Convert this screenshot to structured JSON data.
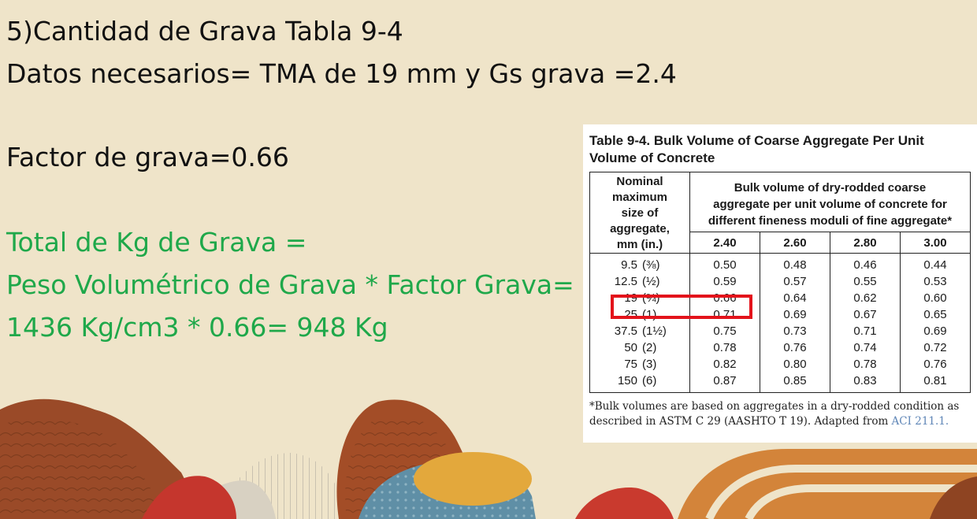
{
  "slide": {
    "heading": "5)Cantidad de Grava Tabla 9-4",
    "datos": "Datos necesarios= TMA de 19 mm y Gs grava =2.4",
    "factor": "Factor de grava=0.66",
    "total_label": "Total de Kg de Grava =",
    "formula": "Peso Volumétrico de Grava * Factor Grava=",
    "result": "1436 Kg/cm3 * 0.66= 948 Kg"
  },
  "colors": {
    "background": "#efe4c9",
    "green_text": "#1fa84a",
    "highlight": "#e3131b"
  },
  "table": {
    "title_line1": "Table 9-4. Bulk Volume of Coarse Aggregate Per Unit",
    "title_line2": "Volume of Concrete",
    "size_header": [
      "Nominal",
      "maximum",
      "size of",
      "aggregate,",
      "mm  (in.)"
    ],
    "bulk_header": [
      "Bulk volume of dry-rodded coarse",
      "aggregate per unit volume of concrete for",
      "different fineness moduli of fine aggregate*"
    ],
    "fm_columns": [
      "2.40",
      "2.60",
      "2.80",
      "3.00"
    ],
    "rows": [
      {
        "mm": "9.5",
        "in": "(⅜)",
        "values": [
          "0.50",
          "0.48",
          "0.46",
          "0.44"
        ]
      },
      {
        "mm": "12.5",
        "in": "(½)",
        "values": [
          "0.59",
          "0.57",
          "0.55",
          "0.53"
        ]
      },
      {
        "mm": "19",
        "in": "(¾)",
        "values": [
          "0.66",
          "0.64",
          "0.62",
          "0.60"
        ]
      },
      {
        "mm": "25",
        "in": "(1)",
        "values": [
          "0.71",
          "0.69",
          "0.67",
          "0.65"
        ]
      },
      {
        "mm": "37.5",
        "in": "(1½)",
        "values": [
          "0.75",
          "0.73",
          "0.71",
          "0.69"
        ]
      },
      {
        "mm": "50",
        "in": "(2)",
        "values": [
          "0.78",
          "0.76",
          "0.74",
          "0.72"
        ]
      },
      {
        "mm": "75",
        "in": "(3)",
        "values": [
          "0.82",
          "0.80",
          "0.78",
          "0.76"
        ]
      },
      {
        "mm": "150",
        "in": "(6)",
        "values": [
          "0.87",
          "0.85",
          "0.83",
          "0.81"
        ]
      }
    ],
    "footnote_line1": "*Bulk volumes are based on aggregates in a dry-rodded condition as",
    "footnote_line2": "described in ASTM C 29 (AASHTO T 19). Adapted from ",
    "footnote_ref": "ACI 211.1."
  }
}
